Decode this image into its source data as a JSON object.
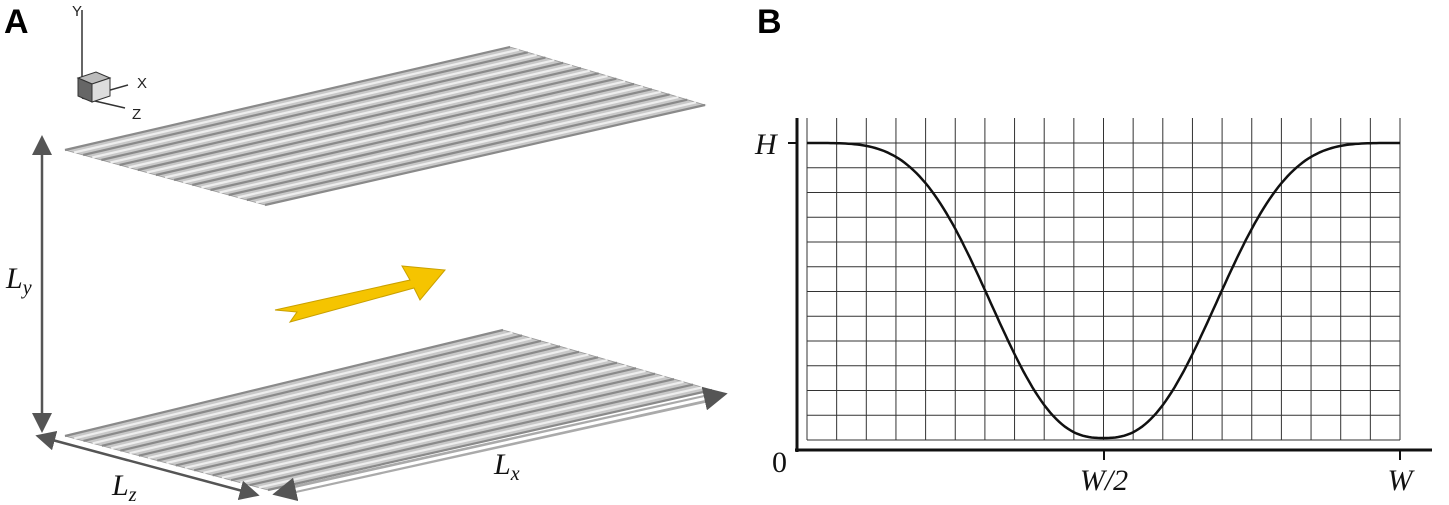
{
  "panels": [
    {
      "label": "A",
      "axes": {
        "y": "Y",
        "x": "X",
        "z": "Z"
      },
      "dimensions": {
        "height": {
          "symbol": "L",
          "subscript": "y"
        },
        "width": {
          "symbol": "L",
          "subscript": "z"
        },
        "length": {
          "symbol": "L",
          "subscript": "x"
        }
      }
    },
    {
      "label": "B",
      "y_labels": {
        "top": "H",
        "origin": "0"
      },
      "x_labels": {
        "middle": "W/2",
        "end": "W"
      }
    }
  ]
}
